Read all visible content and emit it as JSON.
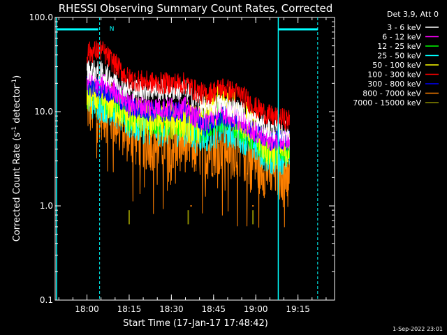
{
  "chart_data": {
    "type": "line",
    "title": "RHESSI Observing Summary Count Rates, Corrected",
    "xlabel": "Start Time (17-Jan-17 17:48:42)",
    "ylabel": "Corrected Count Rate (s⁻¹ detector⁻¹)",
    "ylabel_parts": {
      "a": "Corrected Count Rate (s",
      "b": "-1",
      "c": " detector",
      "d": "-1",
      "e": ")"
    },
    "y_scale": "log",
    "ylim": [
      0.1,
      100
    ],
    "xlim_minutes": [
      "17:48:42",
      "19:28:00"
    ],
    "y_ticks": [
      "0.1",
      "1.0",
      "10.0",
      "100.0"
    ],
    "x_ticks": [
      "18:00",
      "18:15",
      "18:30",
      "18:45",
      "19:00",
      "19:15"
    ],
    "legend_header": "Det 3,9, Att 0",
    "legend_placement": "right-outside",
    "series": [
      {
        "name": "3 - 6 keV",
        "color": "#ffffff",
        "x": [
          "18:00",
          "18:05",
          "18:10",
          "18:15",
          "18:25",
          "18:35",
          "18:38",
          "18:42",
          "18:48",
          "18:55",
          "19:00",
          "19:05",
          "19:12"
        ],
        "values": [
          28,
          26,
          22,
          17,
          17,
          17,
          14,
          11,
          12,
          10,
          8,
          6.5,
          6
        ]
      },
      {
        "name": "6 - 12 keV",
        "color": "#ff00ff",
        "x": [
          "18:00",
          "18:05",
          "18:10",
          "18:15",
          "18:25",
          "18:35",
          "18:38",
          "18:42",
          "18:48",
          "18:55",
          "19:00",
          "19:05",
          "19:12"
        ],
        "values": [
          22,
          20,
          17,
          12,
          11,
          11,
          9,
          8,
          10,
          8,
          6,
          5,
          5
        ]
      },
      {
        "name": "12 - 25 keV",
        "color": "#00ff00",
        "x": [
          "18:00",
          "18:05",
          "18:10",
          "18:15",
          "18:25",
          "18:35",
          "18:38",
          "18:42",
          "18:48",
          "18:55",
          "19:00",
          "19:05",
          "19:12"
        ],
        "values": [
          16,
          15,
          12,
          9,
          8,
          8,
          7,
          7,
          9,
          7,
          5,
          4,
          4
        ]
      },
      {
        "name": "25 - 50 keV",
        "color": "#00ffff",
        "x": [
          "18:00",
          "18:05",
          "18:10",
          "18:15",
          "18:25",
          "18:35",
          "18:38",
          "18:42",
          "18:48",
          "18:55",
          "19:00",
          "19:05",
          "19:12"
        ],
        "values": [
          14,
          13,
          11,
          8,
          7,
          7,
          6,
          6,
          7,
          6,
          4.5,
          3.5,
          3.5
        ]
      },
      {
        "name": "50 - 100 keV",
        "color": "#ffff00",
        "x": [
          "18:00",
          "18:05",
          "18:10",
          "18:15",
          "18:25",
          "18:35",
          "18:38",
          "18:42",
          "18:48",
          "18:55",
          "19:00",
          "19:05",
          "19:12"
        ],
        "values": [
          15,
          14,
          12,
          9,
          8,
          8,
          7,
          9,
          13,
          9,
          6,
          4,
          4
        ]
      },
      {
        "name": "100 - 300 keV",
        "color": "#ff0000",
        "x": [
          "18:00",
          "18:05",
          "18:10",
          "18:15",
          "18:25",
          "18:35",
          "18:38",
          "18:42",
          "18:48",
          "18:55",
          "19:00",
          "19:05",
          "19:12"
        ],
        "values": [
          42,
          45,
          32,
          22,
          20,
          20,
          17,
          15,
          18,
          15,
          11,
          9,
          8
        ]
      },
      {
        "name": "300 - 800 keV",
        "color": "#0000ff",
        "x": [
          "18:00",
          "18:05",
          "18:10",
          "18:15",
          "18:25",
          "18:35",
          "18:38",
          "18:42",
          "18:48",
          "18:55",
          "19:00",
          "19:05",
          "19:12"
        ],
        "values": [
          19,
          18,
          15,
          11,
          10,
          10,
          9,
          7,
          9,
          8,
          6,
          5,
          5
        ]
      },
      {
        "name": "800 - 7000 keV",
        "color": "#ff8000",
        "x": [
          "18:00",
          "18:05",
          "18:10",
          "18:15",
          "18:25",
          "18:35",
          "18:38",
          "18:42",
          "18:48",
          "18:55",
          "19:00",
          "19:05",
          "19:12"
        ],
        "values": [
          12,
          11,
          9,
          6,
          5,
          5,
          4.5,
          4,
          5,
          4,
          3,
          2.5,
          2.5
        ]
      },
      {
        "name": "7000 - 15000 keV",
        "color": "#8b8b00",
        "x": [
          "18:15",
          "18:36",
          "18:59"
        ],
        "values": [
          0.75,
          0.75,
          0.75
        ]
      }
    ],
    "annotations": {
      "flag_label": "N",
      "timestamp": "1-Sep-2022 23:01"
    }
  }
}
